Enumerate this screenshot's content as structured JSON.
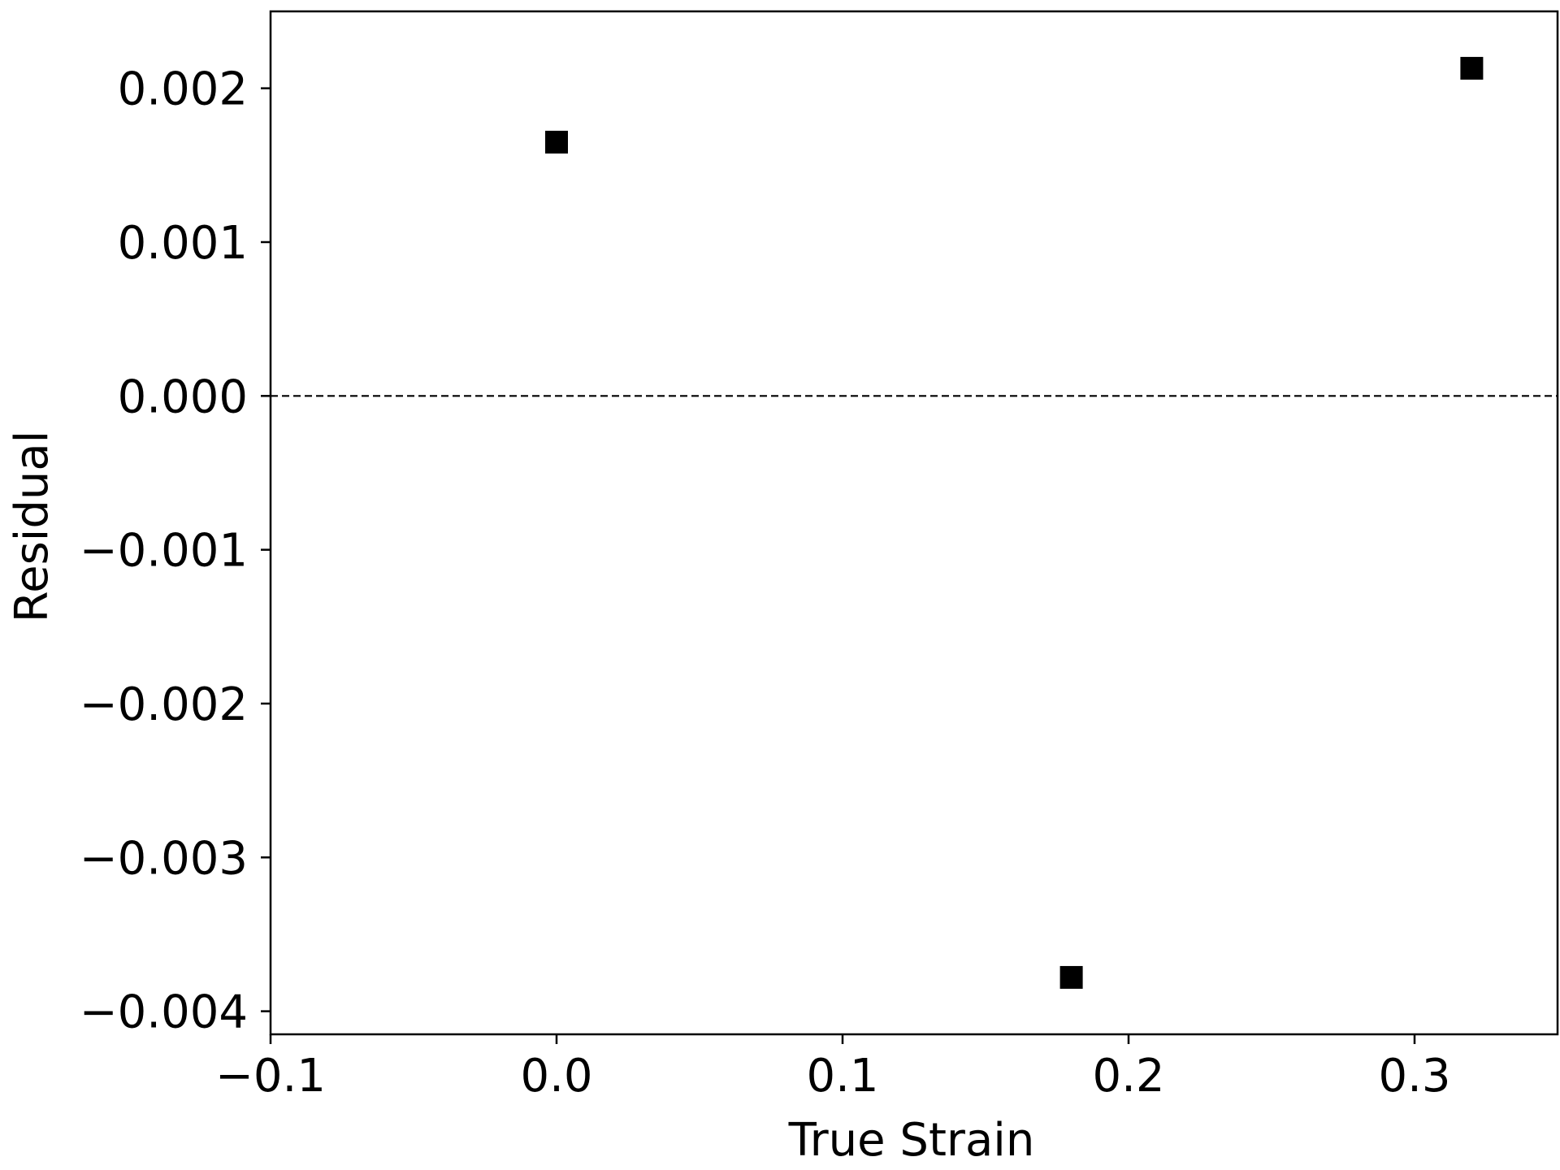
{
  "chart_data": {
    "type": "scatter",
    "title": "",
    "xlabel": "True Strain",
    "ylabel": "Residual",
    "xlim": [
      -0.1,
      0.35
    ],
    "ylim": [
      -0.00415,
      0.0025
    ],
    "xticks": [
      -0.1,
      0.0,
      0.1,
      0.2,
      0.3
    ],
    "xtick_labels": [
      "−0.1",
      "0.0",
      "0.1",
      "0.2",
      "0.3"
    ],
    "yticks": [
      -0.004,
      -0.003,
      -0.002,
      -0.001,
      0.0,
      0.001,
      0.002
    ],
    "ytick_labels": [
      "−0.004",
      "−0.003",
      "−0.002",
      "−0.001",
      "0.000",
      "0.001",
      "0.002"
    ],
    "grid": false,
    "reference_line": {
      "y": 0.0,
      "style": "dashed",
      "color": "#000000"
    },
    "series": [
      {
        "marker": "square",
        "color": "#000000",
        "x": [
          0.0,
          0.18,
          0.32
        ],
        "y": [
          0.00165,
          -0.00378,
          0.00213
        ]
      }
    ]
  }
}
